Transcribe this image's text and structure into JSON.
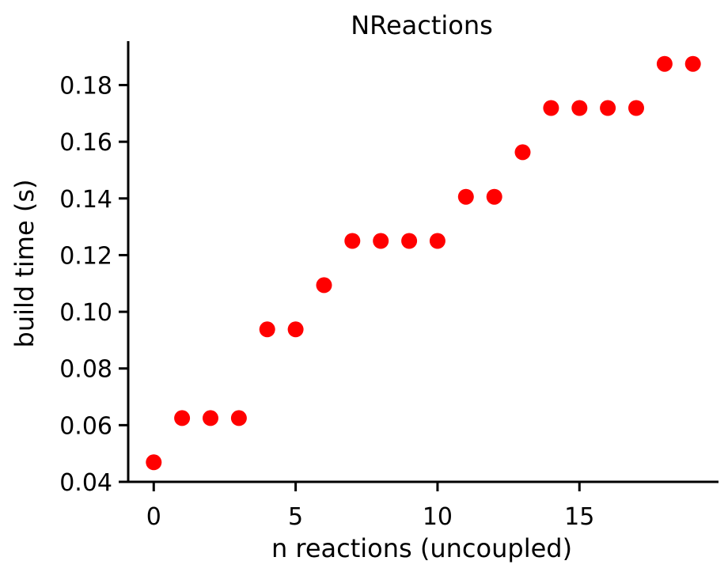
{
  "chart_data": {
    "type": "scatter",
    "title": "NReactions",
    "xlabel": "n reactions (uncoupled)",
    "ylabel": "build time (s)",
    "xlim": [
      -0.9,
      19.9
    ],
    "ylim": [
      0.04,
      0.1955
    ],
    "xticks": [
      0,
      5,
      10,
      15
    ],
    "xtick_labels": [
      "0",
      "5",
      "10",
      "15"
    ],
    "yticks": [
      0.04,
      0.06,
      0.08,
      0.1,
      0.12,
      0.14,
      0.16,
      0.18
    ],
    "ytick_labels": [
      "0.04",
      "0.06",
      "0.08",
      "0.10",
      "0.12",
      "0.14",
      "0.16",
      "0.18"
    ],
    "grid": false,
    "marker_color": "#ff0000",
    "x": [
      0,
      1,
      2,
      3,
      4,
      5,
      6,
      7,
      8,
      9,
      10,
      11,
      12,
      13,
      14,
      15,
      16,
      17,
      18,
      19
    ],
    "y": [
      0.0469,
      0.0625,
      0.0625,
      0.0625,
      0.0938,
      0.0938,
      0.1094,
      0.125,
      0.125,
      0.125,
      0.125,
      0.1406,
      0.1406,
      0.1563,
      0.1719,
      0.1719,
      0.1719,
      0.1719,
      0.1875,
      0.1875
    ]
  }
}
